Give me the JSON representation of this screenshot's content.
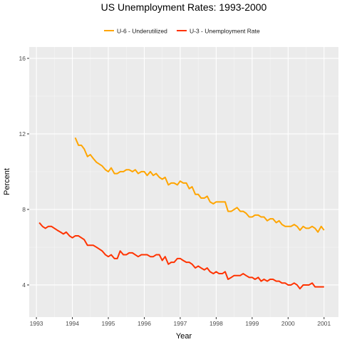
{
  "chart_data": {
    "type": "line",
    "title": "US Unemployment Rates:  1993-2000",
    "xlabel": "Year",
    "ylabel": "Percent",
    "xlim": [
      1992.8,
      2001.4
    ],
    "ylim": [
      2.3,
      16.6
    ],
    "x_ticks": [
      1993,
      1994,
      1995,
      1996,
      1997,
      1998,
      1999,
      2000,
      2001
    ],
    "y_ticks": [
      4,
      8,
      12,
      16
    ],
    "grid": true,
    "legend_position": "top",
    "colors": {
      "panel": "#ebebeb",
      "grid_major": "#ffffff",
      "grid_minor": "#f5f5f5"
    },
    "series": [
      {
        "name": "U-6 - Underutilized",
        "color": "#FFA500",
        "x": [
          1994.08,
          1994.17,
          1994.25,
          1994.33,
          1994.42,
          1994.5,
          1994.58,
          1994.67,
          1994.75,
          1994.83,
          1994.92,
          1995.0,
          1995.08,
          1995.17,
          1995.25,
          1995.33,
          1995.42,
          1995.5,
          1995.58,
          1995.67,
          1995.75,
          1995.83,
          1995.92,
          1996.0,
          1996.08,
          1996.17,
          1996.25,
          1996.33,
          1996.42,
          1996.5,
          1996.58,
          1996.67,
          1996.75,
          1996.83,
          1996.92,
          1997.0,
          1997.08,
          1997.17,
          1997.25,
          1997.33,
          1997.42,
          1997.5,
          1997.58,
          1997.67,
          1997.75,
          1997.83,
          1997.92,
          1998.0,
          1998.08,
          1998.17,
          1998.25,
          1998.33,
          1998.42,
          1998.5,
          1998.58,
          1998.67,
          1998.75,
          1998.83,
          1998.92,
          1999.0,
          1999.08,
          1999.17,
          1999.25,
          1999.33,
          1999.42,
          1999.5,
          1999.58,
          1999.67,
          1999.75,
          1999.83,
          1999.92,
          2000.0,
          2000.08,
          2000.17,
          2000.25,
          2000.33,
          2000.42,
          2000.5,
          2000.58,
          2000.67,
          2000.75,
          2000.83,
          2000.92,
          2001.0
        ],
        "y": [
          11.8,
          11.4,
          11.4,
          11.2,
          10.8,
          10.9,
          10.7,
          10.5,
          10.4,
          10.3,
          10.1,
          10.0,
          10.2,
          9.9,
          9.9,
          10.0,
          10.0,
          10.1,
          10.1,
          10.0,
          10.1,
          9.9,
          10.0,
          10.0,
          9.8,
          10.0,
          9.8,
          9.9,
          9.7,
          9.6,
          9.7,
          9.3,
          9.4,
          9.4,
          9.3,
          9.5,
          9.4,
          9.4,
          9.1,
          9.2,
          8.8,
          8.8,
          8.6,
          8.6,
          8.7,
          8.4,
          8.3,
          8.4,
          8.4,
          8.4,
          8.4,
          7.9,
          7.9,
          8.0,
          8.1,
          7.9,
          7.9,
          7.8,
          7.6,
          7.6,
          7.7,
          7.7,
          7.6,
          7.6,
          7.4,
          7.5,
          7.5,
          7.3,
          7.4,
          7.2,
          7.1,
          7.1,
          7.1,
          7.2,
          7.1,
          6.9,
          7.1,
          7.0,
          7.0,
          7.1,
          7.0,
          6.8,
          7.1,
          6.9
        ]
      },
      {
        "name": "U-3 - Unemployment Rate",
        "color": "#FF3300",
        "x": [
          1993.08,
          1993.17,
          1993.25,
          1993.33,
          1993.42,
          1993.5,
          1993.58,
          1993.67,
          1993.75,
          1993.83,
          1993.92,
          1994.0,
          1994.08,
          1994.17,
          1994.25,
          1994.33,
          1994.42,
          1994.5,
          1994.58,
          1994.67,
          1994.75,
          1994.83,
          1994.92,
          1995.0,
          1995.08,
          1995.17,
          1995.25,
          1995.33,
          1995.42,
          1995.5,
          1995.58,
          1995.67,
          1995.75,
          1995.83,
          1995.92,
          1996.0,
          1996.08,
          1996.17,
          1996.25,
          1996.33,
          1996.42,
          1996.5,
          1996.58,
          1996.67,
          1996.75,
          1996.83,
          1996.92,
          1997.0,
          1997.08,
          1997.17,
          1997.25,
          1997.33,
          1997.42,
          1997.5,
          1997.58,
          1997.67,
          1997.75,
          1997.83,
          1997.92,
          1998.0,
          1998.08,
          1998.17,
          1998.25,
          1998.33,
          1998.42,
          1998.5,
          1998.58,
          1998.67,
          1998.75,
          1998.83,
          1998.92,
          1999.0,
          1999.08,
          1999.17,
          1999.25,
          1999.33,
          1999.42,
          1999.5,
          1999.58,
          1999.67,
          1999.75,
          1999.83,
          1999.92,
          2000.0,
          2000.08,
          2000.17,
          2000.25,
          2000.33,
          2000.42,
          2000.5,
          2000.58,
          2000.67,
          2000.75,
          2000.83,
          2000.92,
          2001.0
        ],
        "y": [
          7.3,
          7.1,
          7.0,
          7.1,
          7.1,
          7.0,
          6.9,
          6.8,
          6.7,
          6.8,
          6.6,
          6.5,
          6.6,
          6.6,
          6.5,
          6.4,
          6.1,
          6.1,
          6.1,
          6.0,
          5.9,
          5.8,
          5.6,
          5.5,
          5.6,
          5.4,
          5.4,
          5.8,
          5.6,
          5.6,
          5.7,
          5.7,
          5.6,
          5.5,
          5.6,
          5.6,
          5.6,
          5.5,
          5.5,
          5.6,
          5.6,
          5.3,
          5.5,
          5.1,
          5.2,
          5.2,
          5.4,
          5.4,
          5.3,
          5.2,
          5.2,
          5.1,
          4.9,
          5.0,
          4.9,
          4.8,
          4.9,
          4.7,
          4.6,
          4.7,
          4.6,
          4.6,
          4.7,
          4.3,
          4.4,
          4.5,
          4.5,
          4.5,
          4.6,
          4.5,
          4.4,
          4.4,
          4.3,
          4.4,
          4.2,
          4.3,
          4.2,
          4.3,
          4.3,
          4.2,
          4.2,
          4.1,
          4.1,
          4.0,
          4.0,
          4.1,
          4.0,
          3.8,
          4.0,
          4.0,
          4.0,
          4.1,
          3.9,
          3.9,
          3.9,
          3.9
        ]
      }
    ]
  }
}
